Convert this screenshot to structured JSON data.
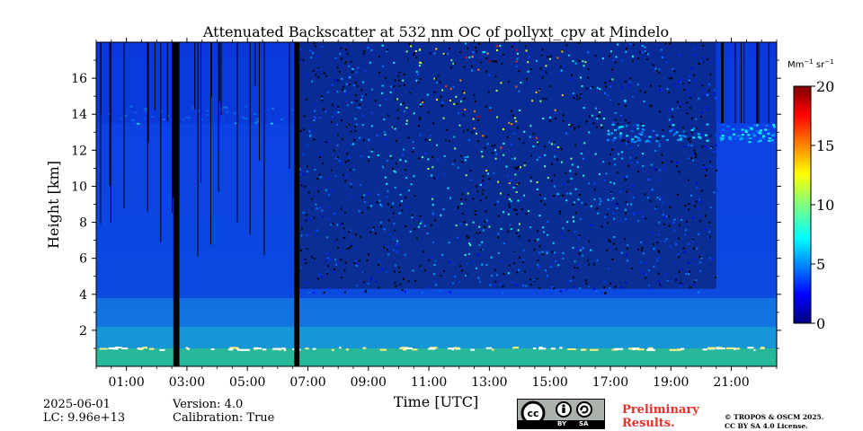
{
  "chart_data": {
    "type": "heatmap",
    "title": "Attenuated Backscatter at 532 nm OC of pollyxt_cpv at Mindelo",
    "xlabel": "Time [UTC]",
    "ylabel": "Height [km]",
    "xlim": [
      0,
      22.5
    ],
    "ylim": [
      0,
      18
    ],
    "x_ticks": [
      "01:00",
      "03:00",
      "05:00",
      "07:00",
      "09:00",
      "11:00",
      "13:00",
      "15:00",
      "17:00",
      "19:00",
      "21:00"
    ],
    "x_tick_values": [
      1,
      3,
      5,
      7,
      9,
      11,
      13,
      15,
      17,
      19,
      21
    ],
    "y_ticks": [
      "2",
      "4",
      "6",
      "8",
      "10",
      "12",
      "14",
      "16"
    ],
    "y_tick_values": [
      2,
      4,
      6,
      8,
      10,
      12,
      14,
      16
    ],
    "colorbar": {
      "unit_base": "Mm",
      "unit_exp1": "−1",
      "unit_mid": " sr",
      "unit_exp2": "−1",
      "range": [
        0,
        20
      ],
      "ticks": [
        "0",
        "5",
        "10",
        "15",
        "20"
      ],
      "tick_values": [
        0,
        5,
        10,
        15,
        20
      ],
      "colormap": "jet"
    },
    "no_data_periods_utc": [
      [
        2.55,
        2.75
      ],
      [
        6.55,
        6.72
      ]
    ],
    "features": {
      "boundary_layer_top_km": 1.0,
      "aerosol_layer_top_km": 3.8,
      "high_noise_zone_utc": [
        6.7,
        20.5
      ],
      "upper_layer_km": [
        13.5,
        14.5
      ]
    }
  },
  "footer": {
    "date": "2025-06-01",
    "lc": "LC: 9.96e+13",
    "version": "Version: 4.0",
    "calibration": "Calibration: True",
    "license_badge": {
      "by": "BY",
      "sa": "SA"
    },
    "preliminary_line1": "Preliminary",
    "preliminary_line2": "Results.",
    "copyright_line1": "© TROPOS & OSCM 2025.",
    "copyright_line2": "CC BY SA 4.0 License."
  }
}
